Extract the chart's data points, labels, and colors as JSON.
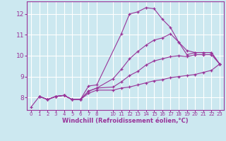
{
  "xlabel": "Windchill (Refroidissement éolien,°C)",
  "background_color": "#cce8f0",
  "grid_color": "#ffffff",
  "line_color": "#993399",
  "xlim": [
    -0.5,
    23.5
  ],
  "ylim": [
    7.4,
    12.6
  ],
  "yticks": [
    8,
    9,
    10,
    11,
    12
  ],
  "xtick_positions": [
    0,
    1,
    2,
    3,
    4,
    5,
    6,
    7,
    8,
    10,
    11,
    12,
    13,
    14,
    15,
    16,
    17,
    18,
    19,
    20,
    21,
    22,
    23
  ],
  "xtick_labels": [
    "0",
    "1",
    "2",
    "3",
    "4",
    "5",
    "6",
    "7",
    "8",
    "10",
    "11",
    "12",
    "13",
    "14",
    "15",
    "16",
    "17",
    "18",
    "19",
    "20",
    "21",
    "22",
    "23"
  ],
  "curves": [
    {
      "x": [
        0,
        1,
        2,
        3,
        4,
        5,
        6,
        7,
        8,
        11,
        12,
        13,
        14,
        15,
        16,
        17,
        18,
        19,
        20,
        21,
        22,
        23
      ],
      "y": [
        7.55,
        8.05,
        7.9,
        8.05,
        8.1,
        7.9,
        7.9,
        8.55,
        8.6,
        11.05,
        12.0,
        12.1,
        12.3,
        12.25,
        11.75,
        11.35,
        10.65,
        10.05,
        10.15,
        10.15,
        10.15,
        9.6
      ]
    },
    {
      "x": [
        1,
        2,
        3,
        4,
        5,
        6,
        7,
        8,
        10,
        11,
        12,
        13,
        14,
        15,
        16,
        17,
        18,
        19,
        20,
        21,
        22,
        23
      ],
      "y": [
        8.05,
        7.9,
        8.05,
        8.1,
        7.9,
        7.9,
        8.3,
        8.45,
        8.9,
        9.35,
        9.85,
        10.2,
        10.5,
        10.75,
        10.85,
        11.05,
        10.65,
        10.25,
        10.15,
        10.15,
        10.15,
        9.6
      ]
    },
    {
      "x": [
        1,
        2,
        3,
        4,
        5,
        6,
        7,
        8,
        10,
        11,
        12,
        13,
        14,
        15,
        16,
        17,
        18,
        19,
        20,
        21,
        22,
        23
      ],
      "y": [
        8.05,
        7.9,
        8.05,
        8.1,
        7.9,
        7.9,
        8.3,
        8.45,
        8.5,
        8.75,
        9.05,
        9.25,
        9.55,
        9.75,
        9.85,
        9.95,
        10.0,
        9.95,
        10.05,
        10.05,
        10.05,
        9.6
      ]
    },
    {
      "x": [
        1,
        2,
        3,
        4,
        5,
        6,
        7,
        8,
        10,
        11,
        12,
        13,
        14,
        15,
        16,
        17,
        18,
        19,
        20,
        21,
        22,
        23
      ],
      "y": [
        8.05,
        7.9,
        8.05,
        8.1,
        7.9,
        7.9,
        8.2,
        8.35,
        8.35,
        8.45,
        8.5,
        8.6,
        8.7,
        8.8,
        8.85,
        8.95,
        9.0,
        9.05,
        9.1,
        9.2,
        9.3,
        9.6
      ]
    }
  ]
}
